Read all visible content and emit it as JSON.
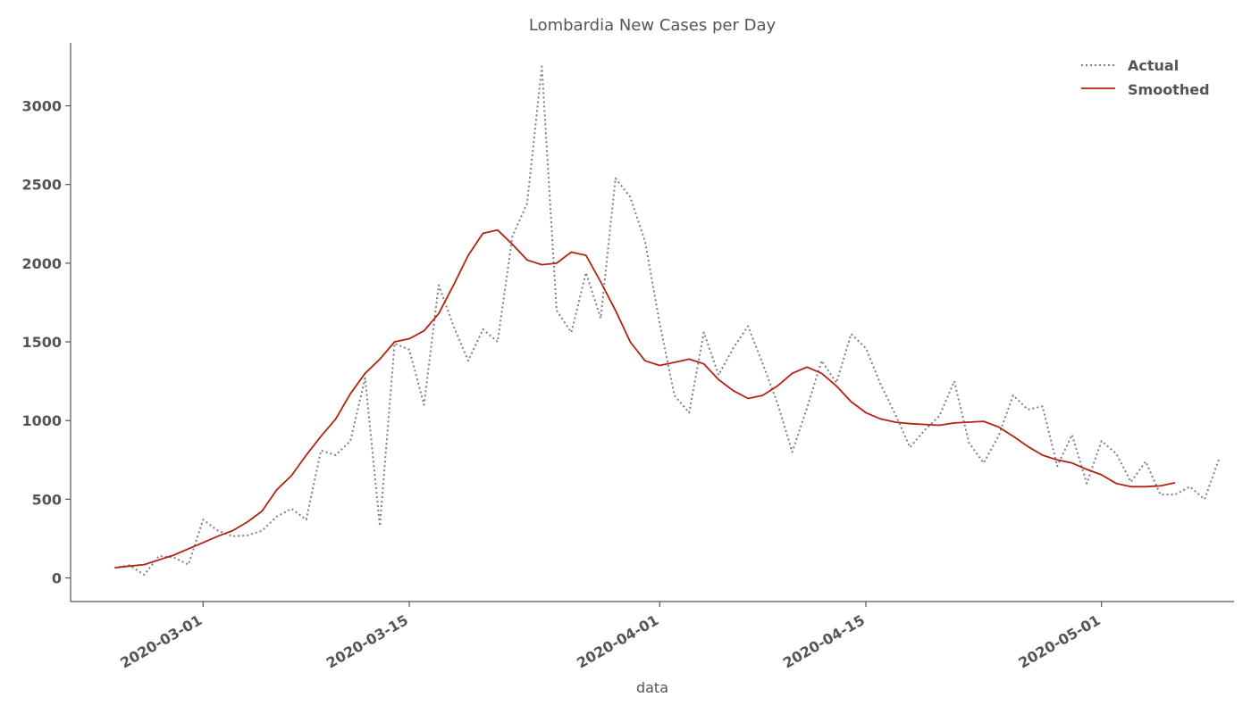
{
  "chart_data": {
    "type": "line",
    "title": "Lombardia New Cases per Day",
    "xlabel": "data",
    "ylabel": "",
    "x_start_date": "2020-02-24",
    "x_range": [
      "2020-02-21",
      "2020-05-10"
    ],
    "ylim": [
      -150,
      3400
    ],
    "y_ticks": [
      0,
      500,
      1000,
      1500,
      2000,
      2500,
      3000
    ],
    "x_ticks": [
      {
        "date": "2020-03-01",
        "label": "2020-03-01"
      },
      {
        "date": "2020-03-15",
        "label": "2020-03-15"
      },
      {
        "date": "2020-04-01",
        "label": "2020-04-01"
      },
      {
        "date": "2020-04-15",
        "label": "2020-04-15"
      },
      {
        "date": "2020-05-01",
        "label": "2020-05-01"
      }
    ],
    "grid": false,
    "legend_position": "top-right",
    "series": [
      {
        "name": "Actual",
        "style": "dotted",
        "color": "#808080",
        "values": [
          65,
          80,
          20,
          140,
          130,
          85,
          370,
          300,
          265,
          270,
          300,
          390,
          440,
          370,
          810,
          780,
          870,
          1270,
          330,
          1490,
          1450,
          1100,
          1860,
          1600,
          1380,
          1580,
          1500,
          2170,
          2380,
          3250,
          1700,
          1560,
          1940,
          1650,
          2540,
          2420,
          2140,
          1620,
          1160,
          1050,
          1560,
          1290,
          1460,
          1600,
          1360,
          1110,
          800,
          1080,
          1380,
          1240,
          1550,
          1460,
          1230,
          1040,
          830,
          940,
          1030,
          1250,
          860,
          730,
          900,
          1160,
          1070,
          1090,
          710,
          910,
          600,
          870,
          790,
          610,
          740,
          530,
          530,
          580,
          500,
          760
        ]
      },
      {
        "name": "Smoothed",
        "style": "solid",
        "color": "#b22213",
        "values": [
          65,
          75,
          85,
          115,
          145,
          185,
          225,
          265,
          300,
          355,
          425,
          560,
          650,
          780,
          900,
          1010,
          1170,
          1300,
          1390,
          1500,
          1520,
          1570,
          1680,
          1860,
          2050,
          2190,
          2210,
          2120,
          2020,
          1990,
          2000,
          2070,
          2050,
          1880,
          1700,
          1500,
          1380,
          1350,
          1370,
          1390,
          1360,
          1260,
          1190,
          1140,
          1160,
          1220,
          1300,
          1340,
          1300,
          1220,
          1120,
          1050,
          1010,
          990,
          980,
          975,
          970,
          985,
          990,
          995,
          960,
          900,
          835,
          780,
          750,
          730,
          690,
          655,
          600,
          580,
          580,
          585,
          605
        ]
      }
    ]
  }
}
